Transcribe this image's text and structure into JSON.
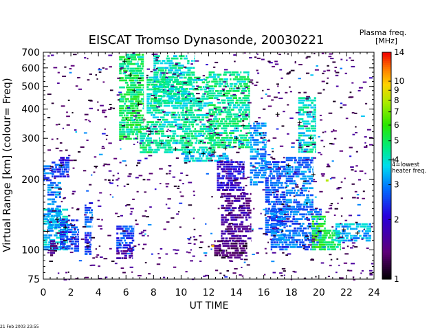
{
  "chart_data": {
    "type": "heatmap",
    "title": "EISCAT Tromso Dynasonde,  20030221",
    "xlabel": "UT TIME",
    "ylabel": "Virtual Range [km]  (colour= Freq)",
    "colorbar_label_line1": "Plasma freq.",
    "colorbar_label_line2": "[MHz]",
    "heater_note_line1": "4=lowest",
    "heater_note_line2": "heater freq.",
    "xlim": [
      0,
      24
    ],
    "ylim": [
      75,
      700
    ],
    "yscale": "log",
    "x_ticks": [
      "0",
      "2",
      "4",
      "6",
      "8",
      "10",
      "12",
      "14",
      "16",
      "18",
      "20",
      "22",
      "24"
    ],
    "y_ticks": [
      "75",
      "100",
      "200",
      "300",
      "400",
      "500",
      "600",
      "700"
    ],
    "colorbar_ticks": [
      "1",
      "2",
      "3",
      "4",
      "5",
      "6",
      "7",
      "8",
      "9",
      "10",
      "14"
    ],
    "colorbar_range": [
      1,
      14
    ],
    "colorbar_scale": "log",
    "regions": [
      {
        "x": [
          0.0,
          0.6
        ],
        "y": [
          200,
          230
        ],
        "f": 2.7
      },
      {
        "x": [
          0.6,
          1.9
        ],
        "y": [
          205,
          250
        ],
        "f": 2.4
      },
      {
        "x": [
          0.0,
          1.8
        ],
        "y": [
          100,
          150
        ],
        "f": 3.6
      },
      {
        "x": [
          0.3,
          1.3
        ],
        "y": [
          125,
          195
        ],
        "f": 3.0
      },
      {
        "x": [
          1.2,
          2.6
        ],
        "y": [
          100,
          135
        ],
        "f": 2.6
      },
      {
        "x": [
          0.5,
          1.1
        ],
        "y": [
          95,
          110
        ],
        "f": 1.4
      },
      {
        "x": [
          3.0,
          3.6
        ],
        "y": [
          125,
          160
        ],
        "f": 2.8
      },
      {
        "x": [
          3.0,
          3.5
        ],
        "y": [
          95,
          122
        ],
        "f": 2.4
      },
      {
        "x": [
          5.3,
          6.6
        ],
        "y": [
          100,
          130
        ],
        "f": 2.5
      },
      {
        "x": [
          5.3,
          6.5
        ],
        "y": [
          92,
          102
        ],
        "f": 1.7
      },
      {
        "x": [
          5.5,
          6.9
        ],
        "y": [
          300,
          690
        ],
        "f": 4.8
      },
      {
        "x": [
          6.3,
          7.3
        ],
        "y": [
          320,
          690
        ],
        "f": 4.8
      },
      {
        "x": [
          7.0,
          12.5
        ],
        "y": [
          260,
          340
        ],
        "f": 4.4
      },
      {
        "x": [
          7.5,
          12.0
        ],
        "y": [
          340,
          550
        ],
        "f": 4.3
      },
      {
        "x": [
          8.0,
          11.0
        ],
        "y": [
          420,
          680
        ],
        "f": 4.2
      },
      {
        "x": [
          10.0,
          13.5
        ],
        "y": [
          240,
          260
        ],
        "f": 3.6
      },
      {
        "x": [
          12.0,
          15.0
        ],
        "y": [
          275,
          580
        ],
        "f": 4.5
      },
      {
        "x": [
          12.6,
          14.6
        ],
        "y": [
          180,
          240
        ],
        "f": 2.0
      },
      {
        "x": [
          12.9,
          15.1
        ],
        "y": [
          110,
          175
        ],
        "f": 1.6
      },
      {
        "x": [
          12.4,
          14.8
        ],
        "y": [
          92,
          110
        ],
        "f": 1.3
      },
      {
        "x": [
          15.0,
          16.2
        ],
        "y": [
          190,
          350
        ],
        "f": 3.1
      },
      {
        "x": [
          16.1,
          17.6
        ],
        "y": [
          110,
          240
        ],
        "f": 2.7
      },
      {
        "x": [
          16.5,
          20.2
        ],
        "y": [
          100,
          150
        ],
        "f": 2.8
      },
      {
        "x": [
          17.6,
          19.6
        ],
        "y": [
          150,
          250
        ],
        "f": 2.9
      },
      {
        "x": [
          18.5,
          19.8
        ],
        "y": [
          260,
          450
        ],
        "f": 4.0
      },
      {
        "x": [
          20.0,
          21.6
        ],
        "y": [
          100,
          122
        ],
        "f": 4.6
      },
      {
        "x": [
          21.2,
          23.8
        ],
        "y": [
          110,
          130
        ],
        "f": 3.4
      },
      {
        "x": [
          19.5,
          20.5
        ],
        "y": [
          100,
          140
        ],
        "f": 5.5
      }
    ],
    "trace_points": [
      {
        "x": 5.9,
        "y": 640
      },
      {
        "x": 6.3,
        "y": 560
      },
      {
        "x": 6.6,
        "y": 480
      },
      {
        "x": 6.9,
        "y": 420
      },
      {
        "x": 7.3,
        "y": 360
      },
      {
        "x": 7.8,
        "y": 320
      },
      {
        "x": 8.6,
        "y": 285
      },
      {
        "x": 9.6,
        "y": 270
      },
      {
        "x": 10.6,
        "y": 262
      },
      {
        "x": 11.6,
        "y": 258
      },
      {
        "x": 12.4,
        "y": 262
      },
      {
        "x": 13.2,
        "y": 272
      },
      {
        "x": 14.0,
        "y": 300
      },
      {
        "x": 14.5,
        "y": 340
      },
      {
        "x": 0.3,
        "y": 120
      },
      {
        "x": 1.0,
        "y": 135
      },
      {
        "x": 1.6,
        "y": 125
      },
      {
        "x": 1.3,
        "y": 230
      },
      {
        "x": 17.0,
        "y": 380
      },
      {
        "x": 18.6,
        "y": 350
      },
      {
        "x": 19.4,
        "y": 300
      },
      {
        "x": 17.8,
        "y": 230
      },
      {
        "x": 19.6,
        "y": 210
      },
      {
        "x": 21.8,
        "y": 122
      },
      {
        "x": 22.8,
        "y": 118
      }
    ],
    "ui_hot_pixels": [
      {
        "x": 12.2,
        "y": 105,
        "f": 10
      },
      {
        "x": 20.5,
        "y": 200,
        "f": 8
      }
    ]
  },
  "timestamp": "21 Feb 2003 23:55"
}
